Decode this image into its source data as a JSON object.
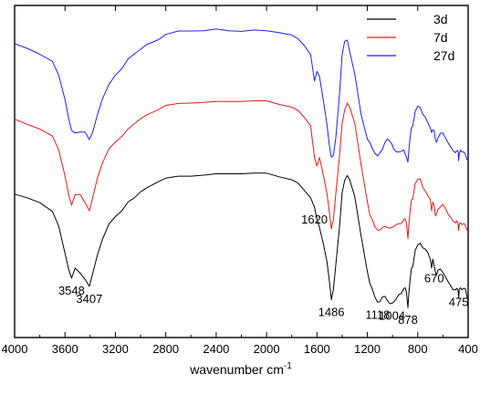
{
  "chart_data": {
    "type": "line",
    "title": "",
    "xlabel": "wavenumber cm",
    "xlabel_sup": "-1",
    "ylabel": "",
    "xlim": [
      4000,
      400
    ],
    "x_reversed": true,
    "ylim": [
      0,
      100
    ],
    "y_ticks_shown": false,
    "grid": false,
    "legend_position": "top-right",
    "x_ticks": [
      4000,
      3600,
      3200,
      2800,
      2400,
      2000,
      1600,
      1200,
      800,
      400
    ],
    "series": [
      {
        "name": "3d",
        "color": "#000000",
        "x": [
          4000,
          3900,
          3800,
          3700,
          3650,
          3600,
          3570,
          3548,
          3520,
          3480,
          3440,
          3407,
          3380,
          3340,
          3300,
          3250,
          3200,
          3150,
          3100,
          3050,
          3000,
          2950,
          2900,
          2850,
          2800,
          2700,
          2600,
          2500,
          2400,
          2300,
          2200,
          2100,
          2000,
          1900,
          1800,
          1750,
          1700,
          1650,
          1620,
          1600,
          1580,
          1550,
          1520,
          1500,
          1486,
          1470,
          1450,
          1420,
          1400,
          1380,
          1360,
          1340,
          1300,
          1250,
          1200,
          1180,
          1160,
          1140,
          1118,
          1100,
          1080,
          1060,
          1040,
          1020,
          1004,
          990,
          970,
          950,
          930,
          910,
          900,
          890,
          878,
          870,
          860,
          850,
          840,
          820,
          800,
          780,
          760,
          740,
          720,
          700,
          690,
          680,
          670,
          660,
          650,
          640,
          620,
          600,
          580,
          560,
          540,
          520,
          500,
          490,
          480,
          475,
          470,
          460,
          450,
          430,
          420,
          410,
          400
        ],
        "y": [
          43.2,
          42.1,
          40.6,
          38.0,
          33.6,
          25.4,
          20.4,
          17.9,
          20.9,
          19.4,
          17.5,
          15.4,
          19.3,
          25.2,
          29.8,
          34.2,
          36.4,
          38.1,
          40.8,
          42.1,
          43.9,
          45.1,
          46.1,
          47.1,
          48.0,
          48.6,
          48.6,
          48.9,
          49.3,
          49.3,
          49.3,
          49.5,
          49.5,
          48.4,
          47.5,
          46.5,
          44.3,
          42.1,
          39.3,
          35.6,
          33.1,
          28.4,
          22.7,
          16.6,
          11.4,
          14.4,
          21.9,
          33.8,
          43.6,
          47.3,
          48.8,
          47.5,
          42.4,
          30.6,
          19.8,
          16.3,
          14.5,
          12.2,
          10.6,
          10.8,
          12.3,
          12.4,
          11.1,
          10.2,
          10.3,
          10.7,
          11.7,
          12.9,
          13.3,
          14.8,
          15.0,
          13.6,
          9.0,
          13.5,
          17.6,
          20.9,
          21.3,
          26.2,
          27.9,
          28.4,
          27.0,
          26.6,
          25.6,
          23.5,
          20.9,
          23.6,
          21.6,
          19.7,
          18.8,
          20.3,
          20.6,
          19.6,
          18.3,
          16.9,
          15.7,
          14.4,
          14.4,
          14.8,
          14.2,
          11.9,
          14.6,
          15.0,
          14.4,
          14.9,
          14.5,
          12.4,
          11.2
        ]
      },
      {
        "name": "7d",
        "color": "#e41a1c",
        "x": [
          4000,
          3900,
          3800,
          3700,
          3650,
          3600,
          3570,
          3548,
          3520,
          3480,
          3440,
          3407,
          3380,
          3340,
          3300,
          3250,
          3200,
          3150,
          3100,
          3050,
          3000,
          2950,
          2900,
          2850,
          2800,
          2700,
          2600,
          2500,
          2400,
          2300,
          2200,
          2100,
          2000,
          1900,
          1800,
          1750,
          1700,
          1650,
          1620,
          1600,
          1580,
          1550,
          1520,
          1500,
          1486,
          1470,
          1450,
          1420,
          1400,
          1380,
          1360,
          1340,
          1300,
          1250,
          1200,
          1180,
          1160,
          1140,
          1118,
          1100,
          1080,
          1060,
          1040,
          1020,
          1004,
          990,
          970,
          950,
          930,
          910,
          900,
          890,
          878,
          870,
          860,
          850,
          840,
          820,
          800,
          780,
          760,
          740,
          720,
          700,
          690,
          680,
          670,
          660,
          650,
          640,
          620,
          600,
          580,
          560,
          540,
          520,
          500,
          490,
          480,
          475,
          470,
          460,
          450,
          430,
          420,
          410,
          400
        ],
        "y": [
          65.8,
          64.2,
          62.8,
          60.7,
          56.5,
          48.7,
          42.8,
          39.9,
          43.0,
          43.1,
          40.6,
          38.2,
          42.2,
          48.4,
          52.8,
          56.9,
          58.9,
          60.5,
          62.8,
          64.4,
          65.9,
          67.1,
          67.9,
          68.8,
          69.9,
          70.5,
          70.6,
          70.8,
          71.1,
          71.1,
          71.1,
          71.3,
          71.3,
          70.2,
          69.4,
          68.4,
          66.3,
          63.8,
          54.2,
          51.7,
          54.2,
          49.0,
          43.2,
          37.4,
          32.7,
          35.5,
          43.3,
          55.2,
          64.6,
          68.5,
          70.6,
          69.3,
          64.5,
          52.0,
          40.8,
          36.9,
          35.4,
          33.4,
          32.3,
          32.4,
          33.2,
          33.5,
          33.1,
          32.9,
          33.1,
          33.5,
          34.0,
          34.3,
          34.3,
          35.6,
          35.8,
          34.4,
          29.8,
          34.1,
          38.5,
          41.5,
          41.7,
          46.4,
          47.6,
          47.8,
          45.2,
          44.1,
          42.8,
          41.5,
          38.2,
          40.8,
          39.8,
          36.6,
          37.3,
          38.6,
          39.3,
          40.1,
          38.9,
          37.2,
          36.3,
          35.1,
          34.5,
          35.1,
          34.0,
          32.3,
          34.2,
          34.6,
          34.0,
          34.3,
          33.5,
          32.6,
          31.5
        ]
      },
      {
        "name": "27d",
        "color": "#1f1fff",
        "x": [
          4000,
          3900,
          3800,
          3700,
          3650,
          3600,
          3570,
          3548,
          3520,
          3480,
          3440,
          3407,
          3380,
          3340,
          3300,
          3250,
          3200,
          3150,
          3100,
          3050,
          3000,
          2950,
          2900,
          2850,
          2800,
          2700,
          2600,
          2500,
          2400,
          2300,
          2200,
          2100,
          2000,
          1900,
          1800,
          1750,
          1700,
          1650,
          1620,
          1600,
          1580,
          1550,
          1520,
          1500,
          1486,
          1470,
          1450,
          1420,
          1400,
          1380,
          1360,
          1340,
          1300,
          1250,
          1200,
          1180,
          1160,
          1140,
          1118,
          1100,
          1080,
          1060,
          1040,
          1020,
          1004,
          990,
          970,
          950,
          930,
          910,
          900,
          890,
          878,
          870,
          860,
          850,
          840,
          820,
          800,
          780,
          760,
          740,
          720,
          700,
          690,
          680,
          670,
          660,
          650,
          640,
          620,
          600,
          580,
          560,
          540,
          520,
          500,
          490,
          480,
          475,
          470,
          460,
          450,
          430,
          420,
          410,
          400
        ],
        "y": [
          88.5,
          87.1,
          85.3,
          83.2,
          79.0,
          71.7,
          65.8,
          62.4,
          61.6,
          61.9,
          61.9,
          59.6,
          61.8,
          67.5,
          72.1,
          76.3,
          79.0,
          80.9,
          83.9,
          85.4,
          86.8,
          88.3,
          89.0,
          89.9,
          91.3,
          92.3,
          92.3,
          92.4,
          92.9,
          92.4,
          92.2,
          92.6,
          92.4,
          91.8,
          91.1,
          90.0,
          87.9,
          85.2,
          77.3,
          80.1,
          78.6,
          71.7,
          63.9,
          57.5,
          54.3,
          54.8,
          60.1,
          73.8,
          85.2,
          89.2,
          89.6,
          86.1,
          79.3,
          67.2,
          59.7,
          58.8,
          56.9,
          55.5,
          54.7,
          55.7,
          56.7,
          58.8,
          59.8,
          59.0,
          58.2,
          56.7,
          55.9,
          55.9,
          56.1,
          56.5,
          55.2,
          54.4,
          52.8,
          56.5,
          60.5,
          63.3,
          63.6,
          68.1,
          69.7,
          69.3,
          67.2,
          66.4,
          64.7,
          63.1,
          61.7,
          62.6,
          62.3,
          59.6,
          58.8,
          60.1,
          61.5,
          61.6,
          60.1,
          58.7,
          57.5,
          56.3,
          55.7,
          56.3,
          56.1,
          53.3,
          55.3,
          56.5,
          55.9,
          55.8,
          54.9,
          53.6,
          53.9
        ]
      }
    ],
    "annotations": [
      {
        "text": "3548",
        "x": 3548,
        "y": 17.9
      },
      {
        "text": "3407",
        "x": 3407,
        "y": 15.4
      },
      {
        "text": "1620",
        "x": 1620,
        "y": 39.3
      },
      {
        "text": "1486",
        "x": 1486,
        "y": 11.4
      },
      {
        "text": "1118",
        "x": 1118,
        "y": 10.6
      },
      {
        "text": "1004",
        "x": 1004,
        "y": 10.3
      },
      {
        "text": "878",
        "x": 878,
        "y": 9.0
      },
      {
        "text": "670",
        "x": 670,
        "y": 21.6
      },
      {
        "text": "475",
        "x": 475,
        "y": 14.4
      }
    ]
  }
}
